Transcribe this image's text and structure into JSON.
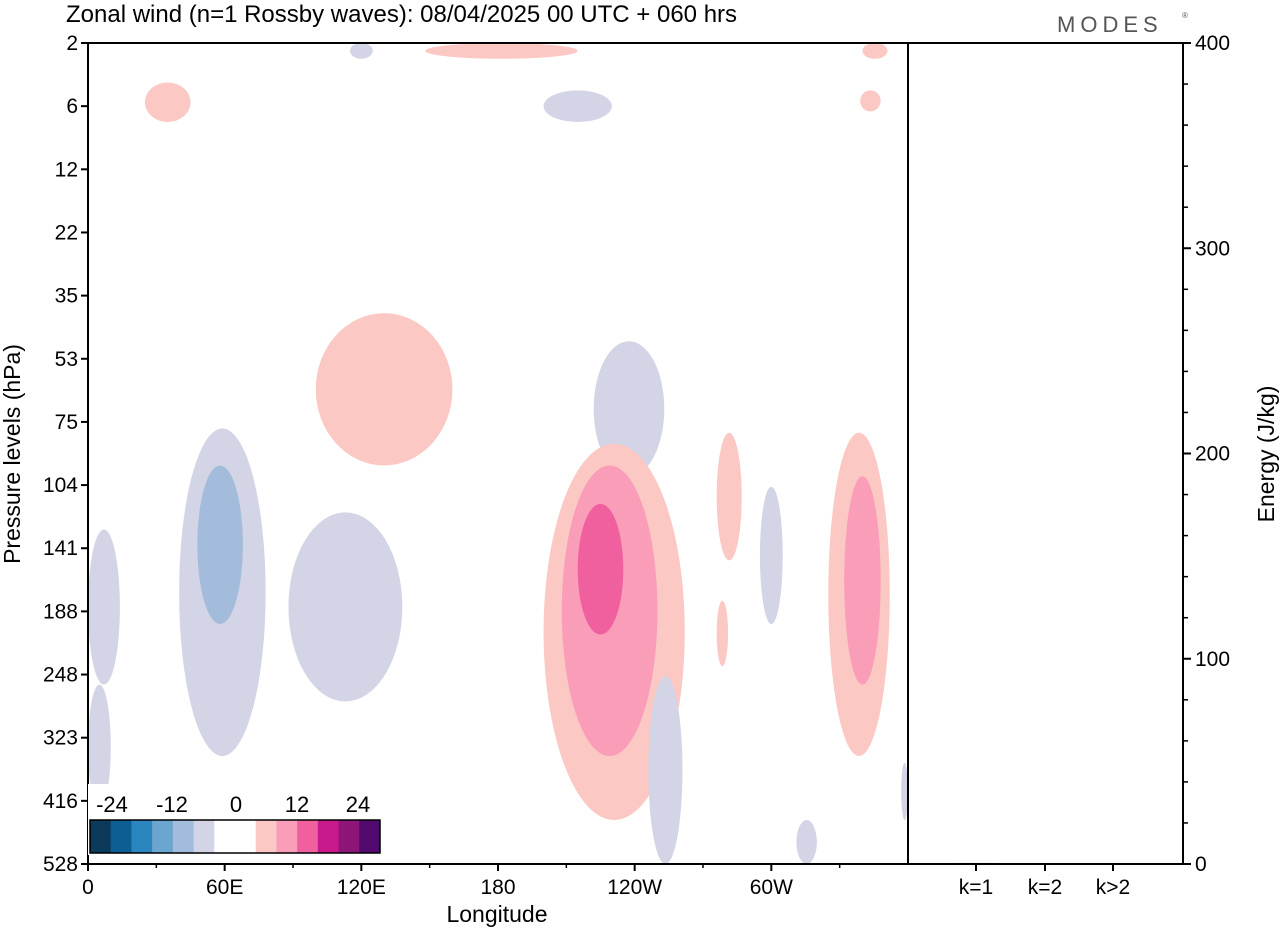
{
  "title": "Zonal wind (n=1 Rossby waves):  08/04/2025  00 UTC  + 060 hrs",
  "logo": "MODES",
  "chart_data": [
    {
      "type": "contour",
      "xlabel": "Longitude",
      "ylabel": "Pressure levels (hPa)",
      "x_ticks": [
        "0",
        "60E",
        "120E",
        "180",
        "120W",
        "60W"
      ],
      "y_ticks": [
        "2",
        "6",
        "12",
        "22",
        "35",
        "53",
        "75",
        "104",
        "141",
        "188",
        "248",
        "323",
        "416",
        "528"
      ],
      "colorbar": {
        "labels": [
          "-24",
          "-12",
          "0",
          "12",
          "24"
        ],
        "colors": [
          "#0b3a5a",
          "#0d5f93",
          "#2b86bf",
          "#6aa6cf",
          "#a3bcdb",
          "#d3d5e6",
          "#ffffff",
          "#ffffff",
          "#fbc8c4",
          "#f99db8",
          "#f05f9e",
          "#c8188a",
          "#8c1577",
          "#520a6e"
        ]
      },
      "features": [
        {
          "sign": "positive",
          "level": 1,
          "lon_range": [
            25,
            45
          ],
          "p_range": [
            4.5,
            7.5
          ]
        },
        {
          "sign": "negative",
          "level": 1,
          "lon_range": [
            115,
            125
          ],
          "p_range": [
            2,
            3
          ]
        },
        {
          "sign": "positive",
          "level": 1,
          "lon_range": [
            148,
            215
          ],
          "p_range": [
            2,
            3
          ]
        },
        {
          "sign": "negative",
          "level": 1,
          "lon_range": [
            200,
            230
          ],
          "p_range": [
            5,
            7.5
          ]
        },
        {
          "sign": "positive",
          "level": 1,
          "lon_range": [
            340,
            351
          ],
          "p_range": [
            2,
            3
          ]
        },
        {
          "sign": "positive",
          "level": 1,
          "lon_range": [
            339,
            348
          ],
          "p_range": [
            5,
            6.5
          ]
        },
        {
          "sign": "positive",
          "level": 1,
          "lon_range": [
            100,
            160
          ],
          "p_range": [
            40,
            95
          ]
        },
        {
          "sign": "negative",
          "level": 1,
          "lon_range": [
            222,
            253
          ],
          "p_range": [
            48,
            100
          ]
        },
        {
          "sign": "negative",
          "level": 1,
          "lon_range": [
            40,
            78
          ],
          "p_range": [
            78,
            350
          ]
        },
        {
          "sign": "negative",
          "level": 2,
          "lon_range": [
            48,
            68
          ],
          "p_range": [
            95,
            200
          ]
        },
        {
          "sign": "negative",
          "level": 1,
          "lon_range": [
            88,
            138
          ],
          "p_range": [
            120,
            280
          ]
        },
        {
          "sign": "positive",
          "level": 1,
          "lon_range": [
            200,
            262
          ],
          "p_range": [
            85,
            450
          ]
        },
        {
          "sign": "positive",
          "level": 2,
          "lon_range": [
            208,
            250
          ],
          "p_range": [
            95,
            350
          ]
        },
        {
          "sign": "positive",
          "level": 3,
          "lon_range": [
            215,
            235
          ],
          "p_range": [
            115,
            210
          ]
        },
        {
          "sign": "positive",
          "level": 1,
          "lon_range": [
            276,
            287
          ],
          "p_range": [
            80,
            150
          ]
        },
        {
          "sign": "positive",
          "level": 1,
          "lon_range": [
            276,
            281
          ],
          "p_range": [
            180,
            240
          ]
        },
        {
          "sign": "negative",
          "level": 1,
          "lon_range": [
            295,
            305
          ],
          "p_range": [
            105,
            200
          ]
        },
        {
          "sign": "positive",
          "level": 1,
          "lon_range": [
            325,
            352
          ],
          "p_range": [
            80,
            350
          ]
        },
        {
          "sign": "positive",
          "level": 2,
          "lon_range": [
            332,
            348
          ],
          "p_range": [
            100,
            260
          ]
        },
        {
          "sign": "negative",
          "level": 1,
          "lon_range": [
            0,
            14
          ],
          "p_range": [
            130,
            260
          ]
        },
        {
          "sign": "negative",
          "level": 1,
          "lon_range": [
            0,
            10
          ],
          "p_range": [
            260,
            430
          ]
        },
        {
          "sign": "negative",
          "level": 1,
          "lon_range": [
            246,
            261
          ],
          "p_range": [
            250,
            528
          ]
        },
        {
          "sign": "negative",
          "level": 1,
          "lon_range": [
            311,
            320
          ],
          "p_range": [
            450,
            528
          ]
        },
        {
          "sign": "negative",
          "level": 1,
          "lon_range": [
            357,
            360
          ],
          "p_range": [
            360,
            450
          ]
        }
      ]
    },
    {
      "type": "bar",
      "ylabel": "Energy (J/kg)",
      "categories": [
        "k=1",
        "k=2",
        "k>2"
      ],
      "values": [
        0.5,
        0.2,
        0.2
      ],
      "ylim": [
        0,
        400
      ],
      "y_ticks": [
        "0",
        "100",
        "200",
        "300",
        "400"
      ]
    }
  ]
}
